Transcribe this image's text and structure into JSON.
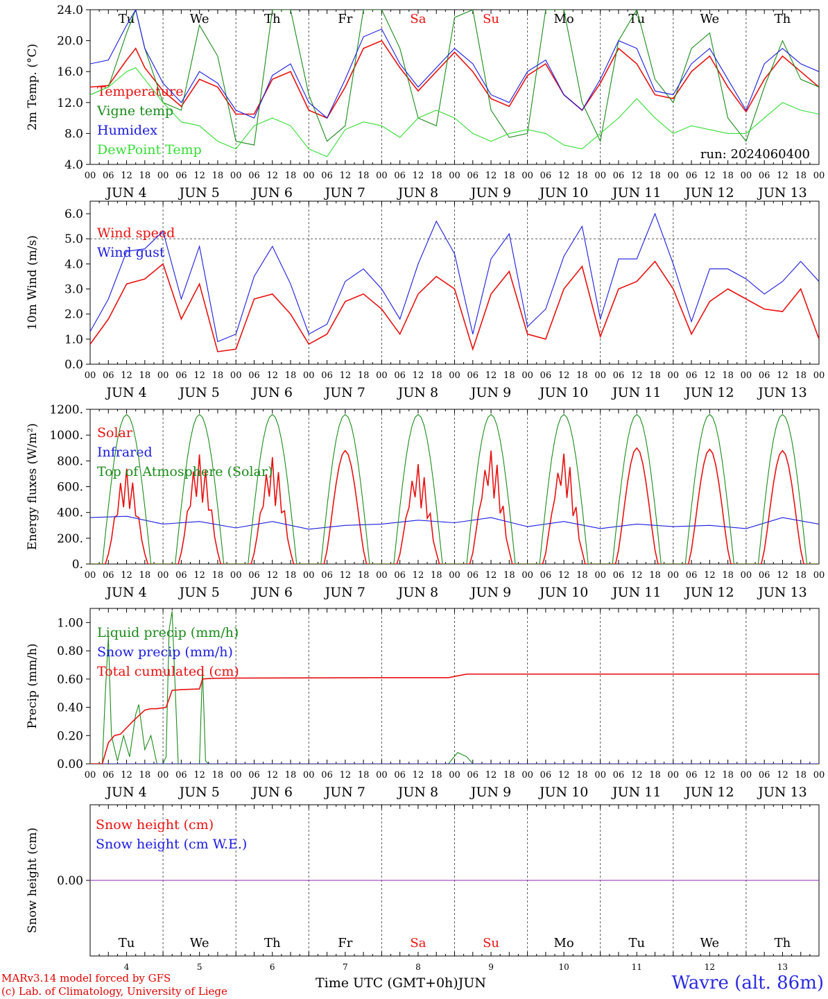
{
  "meta": {
    "run_label": "run: 2024060400",
    "model_credit": "MARv3.14 model forced by GFS",
    "lab_credit": "(c) Lab. of Climatology, University of Liege",
    "station": "Wavre (alt. 86m)",
    "x_title": "Time UTC (GMT+0h)"
  },
  "days": [
    "Tu",
    "We",
    "Th",
    "Fr",
    "Sa",
    "Su",
    "Mo",
    "Tu",
    "We",
    "Th"
  ],
  "weekend_days": [
    "Sa",
    "Su"
  ],
  "dates": [
    "JUN  4",
    "JUN  5",
    "JUN  6",
    "JUN  7",
    "JUN  8",
    "JUN  9",
    "JUN 10",
    "JUN 11",
    "JUN 12",
    "JUN 13"
  ],
  "day_numbers": [
    "4",
    "5",
    "6",
    "7",
    "8",
    "9",
    "10",
    "11",
    "12",
    "13"
  ],
  "month_label": "JUN",
  "hour_ticks": [
    "00",
    "06",
    "12",
    "18"
  ],
  "colors": {
    "red": "#e81010",
    "green": "#1a8a1a",
    "blue": "#1a1ae0",
    "light_green": "#33dd33",
    "purple": "#8a2ab0",
    "grid": "#555555"
  },
  "chart_data": [
    {
      "type": "line",
      "ylabel": "2m Temp. (°C)",
      "ylim": [
        4,
        24
      ],
      "yticks": [
        "4.0",
        "8.0",
        "12.0",
        "16.0",
        "20.0",
        "24.0"
      ],
      "ytick_values": [
        4,
        8,
        12,
        16,
        20,
        24
      ],
      "xlim_hours": [
        0,
        240
      ],
      "series": [
        {
          "name": "Temperature",
          "color": "red",
          "x_hours": [
            0,
            6,
            12,
            15,
            18,
            24,
            30,
            36,
            42,
            48,
            54,
            60,
            66,
            72,
            78,
            84,
            90,
            96,
            102,
            108,
            114,
            120,
            126,
            132,
            138,
            144,
            150,
            156,
            162,
            168,
            174,
            180,
            186,
            192,
            198,
            204,
            210,
            216,
            222,
            228,
            234,
            240
          ],
          "values": [
            14,
            14.2,
            17.5,
            19,
            16.5,
            13.5,
            11.5,
            15,
            14,
            10.5,
            10.5,
            15,
            16,
            11,
            10,
            14,
            19,
            20,
            16.5,
            13.5,
            16,
            18.5,
            16,
            12.5,
            11.5,
            15.5,
            17,
            13,
            11,
            14.5,
            19,
            17,
            13,
            12.5,
            16,
            18,
            14,
            10.8,
            15,
            18,
            16,
            14
          ]
        },
        {
          "name": "Vigne temp",
          "color": "green",
          "x_hours": [
            0,
            6,
            12,
            15,
            18,
            24,
            30,
            36,
            42,
            48,
            54,
            60,
            66,
            72,
            78,
            84,
            90,
            96,
            102,
            108,
            114,
            120,
            126,
            132,
            138,
            144,
            150,
            156,
            162,
            168,
            174,
            180,
            186,
            192,
            198,
            204,
            210,
            216,
            222,
            228,
            234,
            240
          ],
          "values": [
            13,
            14,
            21,
            24,
            19,
            12,
            11,
            22,
            18,
            7,
            6.5,
            24,
            24,
            13,
            7,
            9,
            24,
            24,
            19,
            10,
            9,
            23,
            24,
            11,
            7.5,
            8,
            24,
            24,
            12,
            7,
            20,
            24,
            15,
            12,
            19,
            21,
            10,
            7,
            14,
            20,
            15,
            14
          ]
        },
        {
          "name": "Humidex",
          "color": "blue",
          "x_hours": [
            0,
            6,
            12,
            15,
            18,
            24,
            30,
            36,
            42,
            48,
            54,
            60,
            66,
            72,
            78,
            84,
            90,
            96,
            102,
            108,
            114,
            120,
            126,
            132,
            138,
            144,
            150,
            156,
            162,
            168,
            174,
            180,
            186,
            192,
            198,
            204,
            210,
            216,
            222,
            228,
            234,
            240
          ],
          "values": [
            17,
            17.5,
            22,
            24,
            19,
            14.5,
            12,
            16,
            14.5,
            11,
            10,
            15.5,
            17,
            12,
            10,
            15,
            20.5,
            21.5,
            17,
            14,
            16.5,
            19,
            17,
            13,
            12,
            16,
            17.5,
            13,
            11,
            15,
            20,
            19,
            13.5,
            13,
            17,
            19,
            15,
            11,
            17,
            19,
            17,
            16
          ]
        },
        {
          "name": "DewPoint Temp",
          "color": "light_green",
          "x_hours": [
            0,
            6,
            12,
            15,
            18,
            24,
            30,
            36,
            42,
            48,
            54,
            60,
            66,
            72,
            78,
            84,
            90,
            96,
            102,
            108,
            114,
            120,
            126,
            132,
            138,
            144,
            150,
            156,
            162,
            168,
            174,
            180,
            186,
            192,
            198,
            204,
            210,
            216,
            222,
            228,
            234,
            240
          ],
          "values": [
            13,
            14,
            16,
            16.5,
            15,
            12,
            9.5,
            9,
            7,
            6,
            9,
            10,
            9,
            6,
            5,
            8.5,
            9.5,
            9,
            7.5,
            10,
            11,
            10,
            8,
            7,
            8,
            8.5,
            8,
            6.5,
            6,
            8,
            10,
            12.5,
            10,
            8,
            9,
            8.5,
            8,
            8,
            10,
            12,
            11,
            10.5
          ]
        }
      ]
    },
    {
      "type": "line",
      "ylabel": "10m Wind (m/s)",
      "ylim": [
        0,
        6.5
      ],
      "yticks": [
        "0.0",
        "1.0",
        "2.0",
        "3.0",
        "4.0",
        "5.0",
        "6.0"
      ],
      "ytick_values": [
        0,
        1,
        2,
        3,
        4,
        5,
        6
      ],
      "xlim_hours": [
        0,
        240
      ],
      "series": [
        {
          "name": "Wind speed",
          "color": "red",
          "x_hours": [
            0,
            6,
            12,
            18,
            24,
            30,
            36,
            42,
            48,
            54,
            60,
            66,
            72,
            78,
            84,
            90,
            96,
            102,
            108,
            114,
            120,
            126,
            132,
            138,
            144,
            150,
            156,
            162,
            168,
            174,
            180,
            186,
            192,
            198,
            204,
            210,
            216,
            222,
            228,
            234,
            240
          ],
          "values": [
            0.8,
            1.8,
            3.2,
            3.4,
            4,
            1.8,
            3.2,
            0.5,
            0.6,
            2.6,
            2.8,
            2,
            0.8,
            1.2,
            2.5,
            2.8,
            2.2,
            1.2,
            2.8,
            3.5,
            3,
            0.6,
            2.8,
            3.7,
            1.2,
            1,
            3,
            3.9,
            1.1,
            3,
            3.3,
            4.1,
            3,
            1.2,
            2.5,
            3,
            2.6,
            2.2,
            2.1,
            3,
            1
          ]
        },
        {
          "name": "Wind gust",
          "color": "blue",
          "x_hours": [
            0,
            6,
            12,
            18,
            24,
            30,
            36,
            42,
            48,
            54,
            60,
            66,
            72,
            78,
            84,
            90,
            96,
            102,
            108,
            114,
            120,
            126,
            132,
            138,
            144,
            150,
            156,
            162,
            168,
            174,
            180,
            186,
            192,
            198,
            204,
            210,
            216,
            222,
            228,
            234,
            240
          ],
          "values": [
            1.3,
            2.6,
            4.5,
            4.6,
            5.3,
            2.6,
            4.7,
            0.9,
            1.2,
            3.5,
            4.7,
            3.2,
            1.2,
            1.6,
            3.3,
            3.8,
            3,
            1.8,
            4,
            5.7,
            4.4,
            1.2,
            4.2,
            5.2,
            1.5,
            2.2,
            4.3,
            5.5,
            1.8,
            4.2,
            4.2,
            6,
            4,
            1.7,
            3.8,
            3.8,
            3.4,
            2.8,
            3.3,
            4.1,
            3.3
          ]
        }
      ]
    },
    {
      "type": "line",
      "ylabel": "Energy fluxes (W/m²)",
      "ylim": [
        0,
        1200
      ],
      "yticks": [
        "0.",
        "200.",
        "400.",
        "600.",
        "800.",
        "1000.",
        "1200."
      ],
      "ytick_values": [
        0,
        200,
        400,
        600,
        800,
        1000,
        1200
      ],
      "xlim_hours": [
        0,
        240
      ],
      "series": [
        {
          "name": "Solar",
          "color": "red",
          "daily_peaks": [
            740,
            850,
            830,
            880,
            780,
            890,
            870,
            900,
            890,
            880
          ]
        },
        {
          "name": "Infrared",
          "color": "blue",
          "x_hours": [
            0,
            12,
            24,
            36,
            48,
            60,
            72,
            84,
            96,
            108,
            120,
            132,
            144,
            156,
            168,
            180,
            192,
            204,
            216,
            228,
            240
          ],
          "values": [
            360,
            370,
            310,
            330,
            280,
            330,
            270,
            300,
            310,
            340,
            320,
            360,
            290,
            330,
            275,
            310,
            290,
            300,
            275,
            360,
            310
          ]
        },
        {
          "name": "Top of Atmosphere (Solar)",
          "color": "green",
          "daily_peak": 1160
        }
      ]
    },
    {
      "type": "line",
      "ylabel": "Precip (mm/h)",
      "ylim": [
        0,
        1.1
      ],
      "yticks": [
        "0.00",
        "0.20",
        "0.40",
        "0.60",
        "0.80",
        "1.00"
      ],
      "ytick_values": [
        0,
        0.2,
        0.4,
        0.6,
        0.8,
        1.0
      ],
      "xlim_hours": [
        0,
        240
      ],
      "series": [
        {
          "name": "Liquid precip (mm/h)",
          "color": "green",
          "x_hours": [
            0,
            4,
            5,
            6,
            7,
            9,
            11,
            13,
            15,
            16,
            18,
            20,
            22,
            24,
            25,
            26,
            27,
            29,
            31,
            36,
            37,
            38,
            39,
            40,
            48,
            60,
            118,
            121,
            124,
            126,
            240
          ],
          "values": [
            0,
            0,
            0.5,
            0.9,
            0.2,
            0.02,
            0.2,
            0.05,
            0.35,
            0.42,
            0.1,
            0.2,
            0.0,
            0.0,
            0.05,
            0.95,
            1.08,
            0.0,
            0.0,
            0.0,
            0.68,
            0.02,
            0.0,
            0.0,
            0.0,
            0.0,
            0.0,
            0.08,
            0.05,
            0.0,
            0.0
          ]
        },
        {
          "name": "Snow precip (mm/h)",
          "color": "blue",
          "x_hours": [
            0,
            240
          ],
          "values": [
            0,
            0
          ]
        },
        {
          "name": "Total cumulated (cm)",
          "color": "red",
          "x_hours": [
            0,
            4,
            6,
            8,
            10,
            14,
            18,
            20,
            22,
            25,
            26,
            27,
            30,
            36,
            37,
            40,
            48,
            96,
            118,
            124,
            132,
            240
          ],
          "values": [
            0,
            0,
            0.15,
            0.2,
            0.21,
            0.3,
            0.38,
            0.39,
            0.39,
            0.4,
            0.46,
            0.52,
            0.525,
            0.53,
            0.6,
            0.605,
            0.607,
            0.61,
            0.61,
            0.635,
            0.635,
            0.635
          ]
        }
      ]
    },
    {
      "type": "line",
      "ylabel": "Snow height (cm)",
      "ylim": [
        -1,
        1
      ],
      "yticks": [
        "0.00"
      ],
      "ytick_values": [
        0
      ],
      "xlim_hours": [
        0,
        240
      ],
      "series": [
        {
          "name": "Snow height (cm)",
          "color": "red",
          "x_hours": [
            0,
            240
          ],
          "values": [
            0,
            0
          ]
        },
        {
          "name": "Snow height (cm W.E.)",
          "color": "blue",
          "x_hours": [
            0,
            240
          ],
          "values": [
            0,
            0
          ]
        }
      ]
    }
  ]
}
